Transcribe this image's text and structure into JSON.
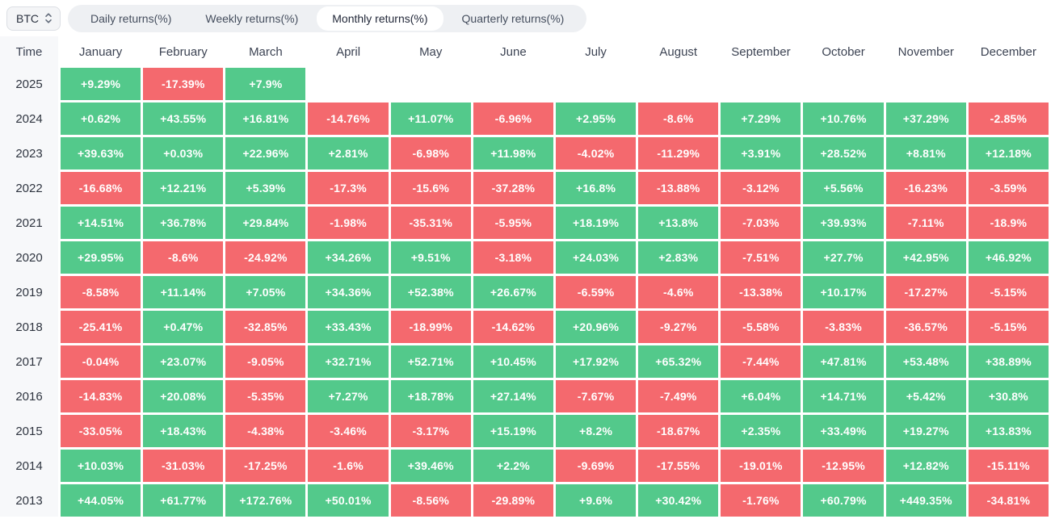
{
  "coin_selector": {
    "label": "BTC",
    "icon": "sort-updown-icon"
  },
  "tabs": {
    "items": [
      {
        "label": "Daily returns(%)",
        "active": false
      },
      {
        "label": "Weekly returns(%)",
        "active": false
      },
      {
        "label": "Monthly returns(%)",
        "active": true
      },
      {
        "label": "Quarterly returns(%)",
        "active": false
      }
    ]
  },
  "colors": {
    "positive": "#53c98b",
    "negative": "#f4696e",
    "cell_text": "#ffffff"
  },
  "chart_data": {
    "type": "heatmap",
    "title": "BTC Monthly returns(%)",
    "time_header": "Time",
    "columns": [
      "January",
      "February",
      "March",
      "April",
      "May",
      "June",
      "July",
      "August",
      "September",
      "October",
      "November",
      "December"
    ],
    "rows": [
      {
        "year": "2025",
        "values": [
          "+9.29%",
          "-17.39%",
          "+7.9%",
          null,
          null,
          null,
          null,
          null,
          null,
          null,
          null,
          null
        ]
      },
      {
        "year": "2024",
        "values": [
          "+0.62%",
          "+43.55%",
          "+16.81%",
          "-14.76%",
          "+11.07%",
          "-6.96%",
          "+2.95%",
          "-8.6%",
          "+7.29%",
          "+10.76%",
          "+37.29%",
          "-2.85%"
        ]
      },
      {
        "year": "2023",
        "values": [
          "+39.63%",
          "+0.03%",
          "+22.96%",
          "+2.81%",
          "-6.98%",
          "+11.98%",
          "-4.02%",
          "-11.29%",
          "+3.91%",
          "+28.52%",
          "+8.81%",
          "+12.18%"
        ]
      },
      {
        "year": "2022",
        "values": [
          "-16.68%",
          "+12.21%",
          "+5.39%",
          "-17.3%",
          "-15.6%",
          "-37.28%",
          "+16.8%",
          "-13.88%",
          "-3.12%",
          "+5.56%",
          "-16.23%",
          "-3.59%"
        ]
      },
      {
        "year": "2021",
        "values": [
          "+14.51%",
          "+36.78%",
          "+29.84%",
          "-1.98%",
          "-35.31%",
          "-5.95%",
          "+18.19%",
          "+13.8%",
          "-7.03%",
          "+39.93%",
          "-7.11%",
          "-18.9%"
        ]
      },
      {
        "year": "2020",
        "values": [
          "+29.95%",
          "-8.6%",
          "-24.92%",
          "+34.26%",
          "+9.51%",
          "-3.18%",
          "+24.03%",
          "+2.83%",
          "-7.51%",
          "+27.7%",
          "+42.95%",
          "+46.92%"
        ]
      },
      {
        "year": "2019",
        "values": [
          "-8.58%",
          "+11.14%",
          "+7.05%",
          "+34.36%",
          "+52.38%",
          "+26.67%",
          "-6.59%",
          "-4.6%",
          "-13.38%",
          "+10.17%",
          "-17.27%",
          "-5.15%"
        ]
      },
      {
        "year": "2018",
        "values": [
          "-25.41%",
          "+0.47%",
          "-32.85%",
          "+33.43%",
          "-18.99%",
          "-14.62%",
          "+20.96%",
          "-9.27%",
          "-5.58%",
          "-3.83%",
          "-36.57%",
          "-5.15%"
        ]
      },
      {
        "year": "2017",
        "values": [
          "-0.04%",
          "+23.07%",
          "-9.05%",
          "+32.71%",
          "+52.71%",
          "+10.45%",
          "+17.92%",
          "+65.32%",
          "-7.44%",
          "+47.81%",
          "+53.48%",
          "+38.89%"
        ]
      },
      {
        "year": "2016",
        "values": [
          "-14.83%",
          "+20.08%",
          "-5.35%",
          "+7.27%",
          "+18.78%",
          "+27.14%",
          "-7.67%",
          "-7.49%",
          "+6.04%",
          "+14.71%",
          "+5.42%",
          "+30.8%"
        ]
      },
      {
        "year": "2015",
        "values": [
          "-33.05%",
          "+18.43%",
          "-4.38%",
          "-3.46%",
          "-3.17%",
          "+15.19%",
          "+8.2%",
          "-18.67%",
          "+2.35%",
          "+33.49%",
          "+19.27%",
          "+13.83%"
        ]
      },
      {
        "year": "2014",
        "values": [
          "+10.03%",
          "-31.03%",
          "-17.25%",
          "-1.6%",
          "+39.46%",
          "+2.2%",
          "-9.69%",
          "-17.55%",
          "-19.01%",
          "-12.95%",
          "+12.82%",
          "-15.11%"
        ]
      },
      {
        "year": "2013",
        "values": [
          "+44.05%",
          "+61.77%",
          "+172.76%",
          "+50.01%",
          "-8.56%",
          "-29.89%",
          "+9.6%",
          "+30.42%",
          "-1.76%",
          "+60.79%",
          "+449.35%",
          "-34.81%"
        ]
      }
    ]
  }
}
